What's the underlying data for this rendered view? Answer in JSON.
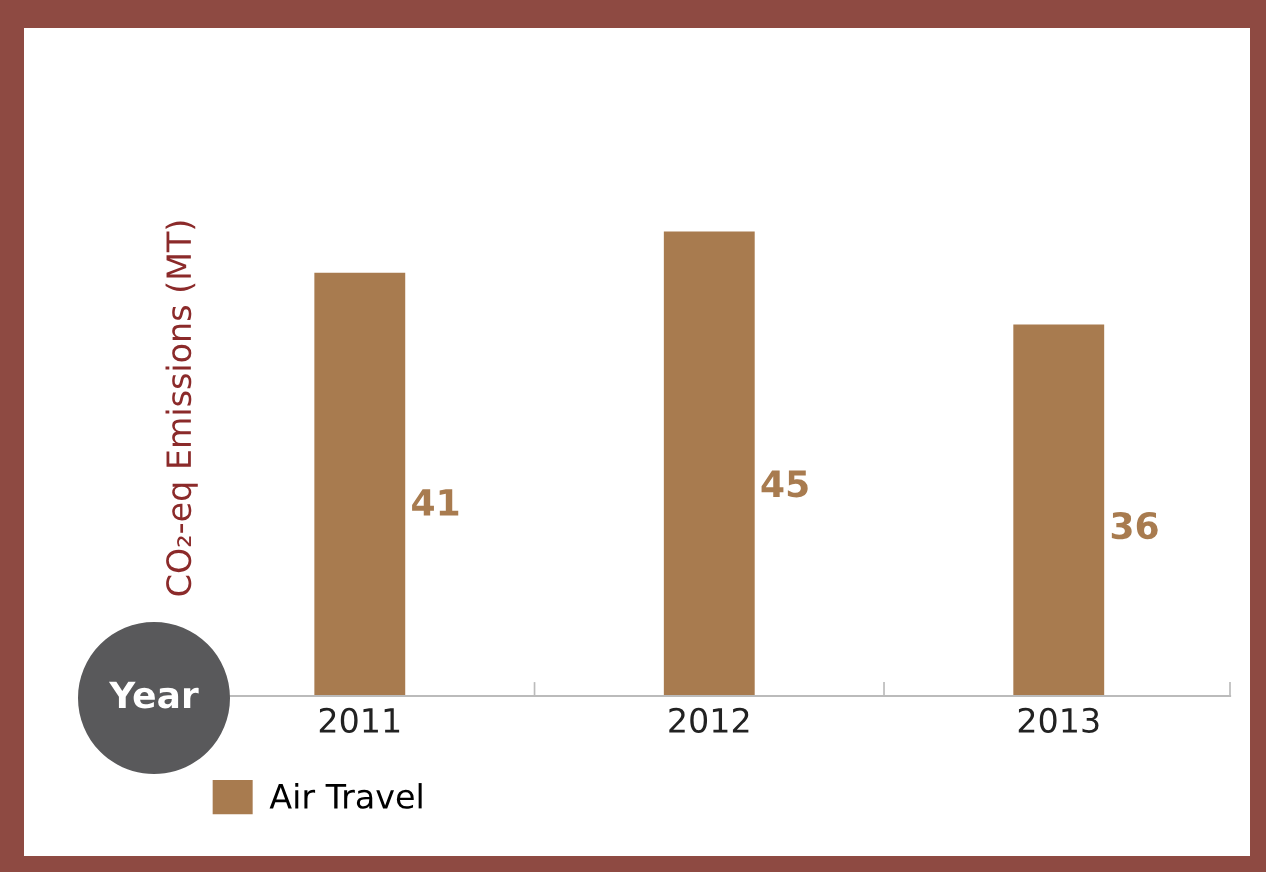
{
  "chart_data": {
    "type": "bar",
    "ylabel": "CO₂-eq Emissions (MT)",
    "xlabel": "Year",
    "categories": [
      "2011",
      "2012",
      "2013"
    ],
    "series": [
      {
        "name": "Air Travel",
        "color": "#a87b4f",
        "values": [
          41,
          45,
          36
        ]
      }
    ],
    "data_labels": true,
    "legend": "bottom left",
    "grid": false
  }
}
